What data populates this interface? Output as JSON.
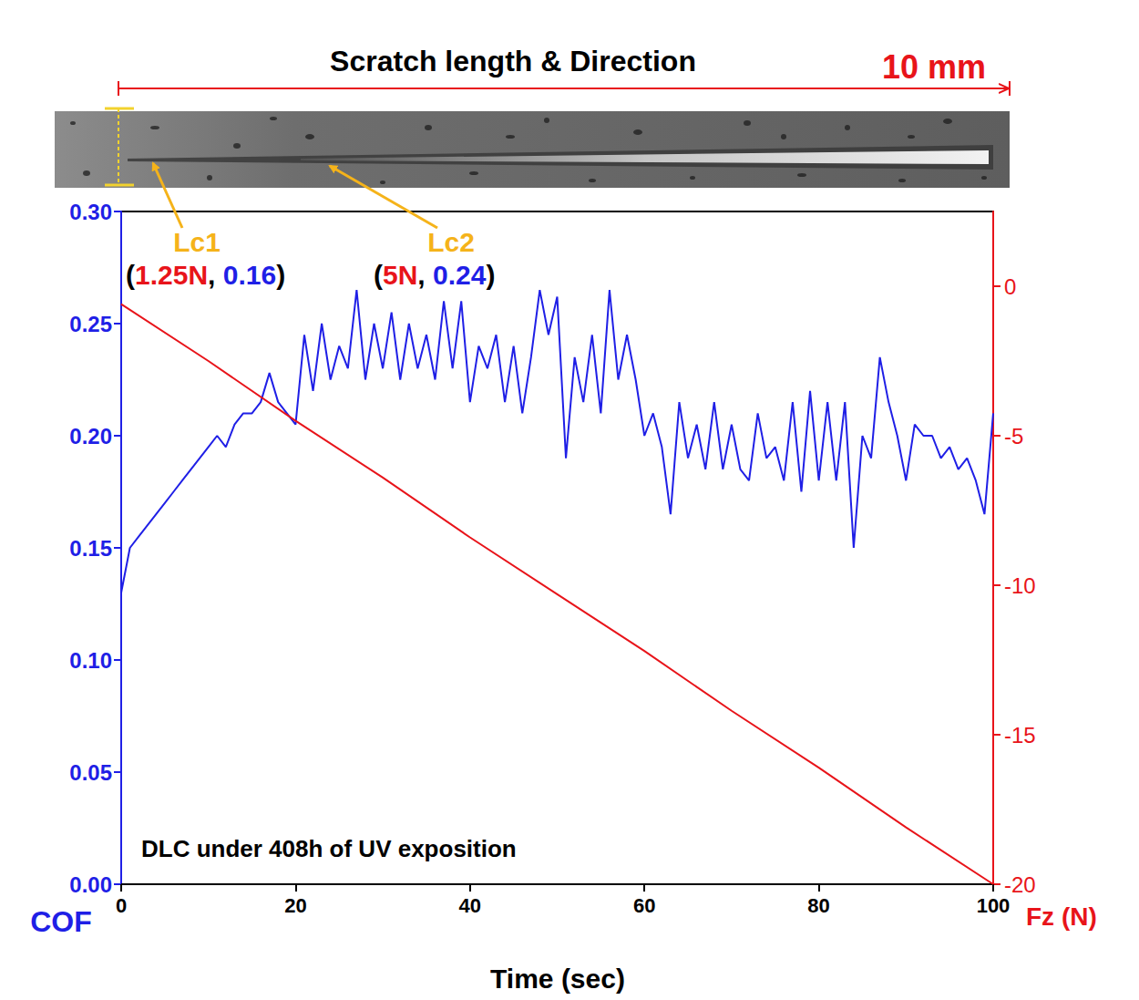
{
  "chart_data": {
    "type": "line",
    "title": "Scratch length & Direction",
    "scale_label": "10 mm",
    "note": "DLC under 408h of UV exposition",
    "critical_loads": [
      {
        "name": "Lc1",
        "label": "(1.25N, 0.16)",
        "load": "1.25N",
        "cof": "0.16"
      },
      {
        "name": "Lc2",
        "label": "(5N, 0.24)",
        "load": "5N",
        "cof": "0.24"
      }
    ],
    "xlabel": "Time (sec)",
    "xlim": [
      0,
      100
    ],
    "xticks": [
      0,
      20,
      40,
      60,
      80,
      100
    ],
    "ylim": [
      0,
      0.3
    ],
    "yticks": [
      {
        "value": 0,
        "label": "0.00"
      },
      {
        "value": 0.05,
        "label": "0.05"
      },
      {
        "value": 0.1,
        "label": "0.10"
      },
      {
        "value": 0.15,
        "label": "0.15"
      },
      {
        "value": 0.2,
        "label": "0.20"
      },
      {
        "value": 0.25,
        "label": "0.25"
      },
      {
        "value": 0.3,
        "label": "0.30"
      }
    ],
    "y2lim": [
      -20,
      2.5
    ],
    "y2ticks": [
      -20,
      -15,
      -10,
      -5,
      0
    ],
    "grid": false,
    "series": [
      {
        "name": "COF",
        "color": "#1f1fe6",
        "axis": "y",
        "x": [
          0,
          1,
          2,
          3,
          4,
          5,
          6,
          7,
          8,
          9,
          10,
          11,
          12,
          13,
          14,
          15,
          16,
          17,
          18,
          19,
          20,
          21,
          22,
          23,
          24,
          25,
          26,
          27,
          28,
          29,
          30,
          31,
          32,
          33,
          34,
          35,
          36,
          37,
          38,
          39,
          40,
          41,
          42,
          43,
          44,
          45,
          46,
          47,
          48,
          49,
          50,
          51,
          52,
          53,
          54,
          55,
          56,
          57,
          58,
          59,
          60,
          61,
          62,
          63,
          64,
          65,
          66,
          67,
          68,
          69,
          70,
          71,
          72,
          73,
          74,
          75,
          76,
          77,
          78,
          79,
          80,
          81,
          82,
          83,
          84,
          85,
          86,
          87,
          88,
          89,
          90,
          91,
          92,
          93,
          94,
          95,
          96,
          97,
          98,
          99,
          100
        ],
        "values": [
          0.13,
          0.15,
          0.155,
          0.16,
          0.165,
          0.17,
          0.175,
          0.18,
          0.185,
          0.19,
          0.195,
          0.2,
          0.195,
          0.205,
          0.21,
          0.21,
          0.215,
          0.228,
          0.215,
          0.21,
          0.205,
          0.245,
          0.22,
          0.25,
          0.225,
          0.24,
          0.23,
          0.265,
          0.225,
          0.25,
          0.23,
          0.255,
          0.225,
          0.25,
          0.23,
          0.245,
          0.225,
          0.26,
          0.23,
          0.26,
          0.215,
          0.24,
          0.23,
          0.245,
          0.215,
          0.24,
          0.21,
          0.235,
          0.265,
          0.245,
          0.262,
          0.19,
          0.235,
          0.215,
          0.245,
          0.21,
          0.265,
          0.225,
          0.245,
          0.225,
          0.2,
          0.21,
          0.195,
          0.165,
          0.215,
          0.19,
          0.205,
          0.185,
          0.215,
          0.185,
          0.205,
          0.185,
          0.18,
          0.21,
          0.19,
          0.195,
          0.18,
          0.215,
          0.175,
          0.22,
          0.18,
          0.215,
          0.18,
          0.215,
          0.15,
          0.2,
          0.19,
          0.235,
          0.215,
          0.2,
          0.18,
          0.205,
          0.2,
          0.2,
          0.19,
          0.195,
          0.185,
          0.19,
          0.18,
          0.165,
          0.21
        ]
      },
      {
        "name": "Fz (N)",
        "color": "#e8141a",
        "axis": "y2",
        "x": [
          0,
          10,
          20,
          30,
          40,
          50,
          60,
          70,
          80,
          90,
          100
        ],
        "values": [
          -0.6,
          -2.5,
          -4.5,
          -6.4,
          -8.4,
          -10.3,
          -12.2,
          -14.2,
          -16.1,
          -18.1,
          -20
        ]
      }
    ]
  }
}
